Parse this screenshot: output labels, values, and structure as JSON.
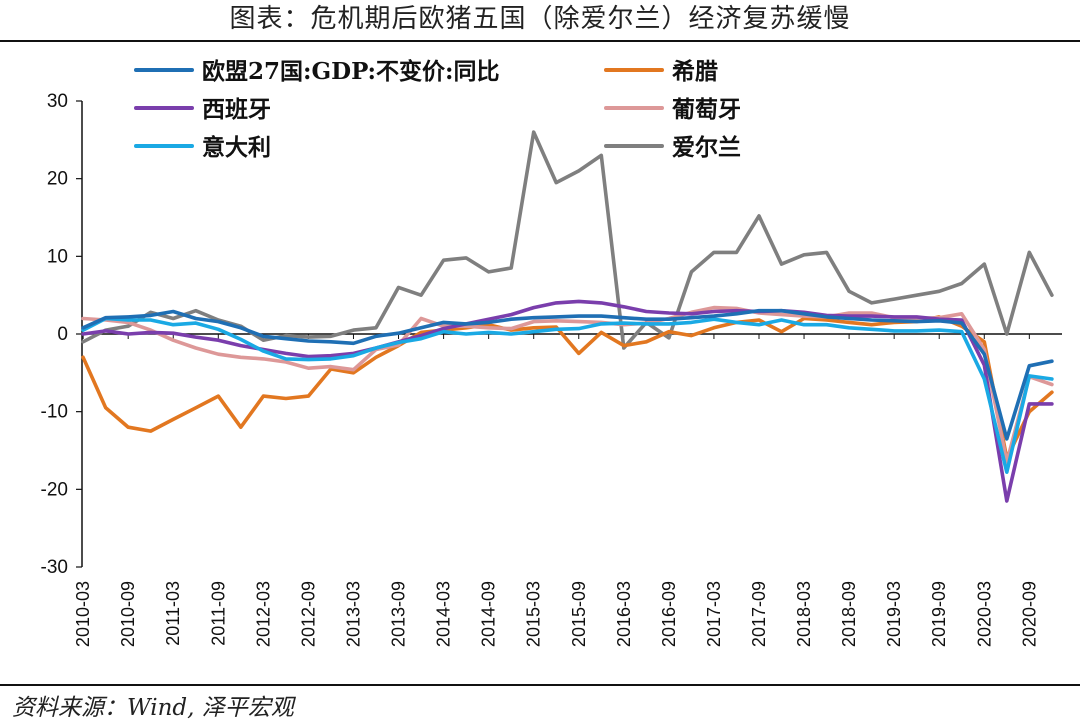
{
  "header": {
    "title": "图表：危机期后欧猪五国（除爱尔兰）经济复苏缓慢"
  },
  "footer": {
    "source": "资料来源：Wind, 泽平宏观"
  },
  "chart_data": {
    "type": "line",
    "title": "图表：危机期后欧猪五国（除爱尔兰）经济复苏缓慢",
    "xlabel": "",
    "ylabel": "",
    "ylim": [
      -30,
      30
    ],
    "yticks": [
      30,
      20,
      10,
      0,
      -10,
      -20,
      -30
    ],
    "grid": false,
    "legend_position": "top",
    "x_tick_labels": [
      "2010-03",
      "2010-09",
      "2011-03",
      "2011-09",
      "2012-03",
      "2012-09",
      "2013-03",
      "2013-09",
      "2014-03",
      "2014-09",
      "2015-03",
      "2015-09",
      "2016-03",
      "2016-09",
      "2017-03",
      "2017-09",
      "2018-03",
      "2018-09",
      "2019-03",
      "2019-09",
      "2020-03",
      "2020-09"
    ],
    "x": [
      "2010-03",
      "2010-06",
      "2010-09",
      "2010-12",
      "2011-03",
      "2011-06",
      "2011-09",
      "2011-12",
      "2012-03",
      "2012-06",
      "2012-09",
      "2012-12",
      "2013-03",
      "2013-06",
      "2013-09",
      "2013-12",
      "2014-03",
      "2014-06",
      "2014-09",
      "2014-12",
      "2015-03",
      "2015-06",
      "2015-09",
      "2015-12",
      "2016-03",
      "2016-06",
      "2016-09",
      "2016-12",
      "2017-03",
      "2017-06",
      "2017-09",
      "2017-12",
      "2018-03",
      "2018-06",
      "2018-09",
      "2018-12",
      "2019-03",
      "2019-06",
      "2019-09",
      "2019-12",
      "2020-03",
      "2020-06",
      "2020-09",
      "2020-12"
    ],
    "series": [
      {
        "name": "欧盟27国:GDP:不变价:同比",
        "color": "#1f6fb4",
        "values": [
          0.8,
          2.1,
          2.2,
          2.4,
          2.9,
          2.0,
          1.6,
          0.8,
          -0.3,
          -0.6,
          -0.9,
          -1.0,
          -1.2,
          -0.3,
          0.1,
          0.8,
          1.5,
          1.3,
          1.5,
          1.9,
          2.1,
          2.2,
          2.3,
          2.3,
          2.1,
          1.9,
          1.9,
          2.1,
          2.3,
          2.6,
          3.0,
          3.0,
          2.6,
          2.2,
          2.0,
          1.8,
          1.7,
          1.6,
          1.7,
          1.4,
          -2.6,
          -13.5,
          -4.1,
          -3.5
        ]
      },
      {
        "name": "希腊",
        "color": "#e27720",
        "values": [
          -3.0,
          -9.5,
          -12.0,
          -12.5,
          -11.0,
          -9.5,
          -8.0,
          -12.0,
          -8.0,
          -8.3,
          -8.0,
          -4.5,
          -5.0,
          -3.0,
          -1.5,
          0.2,
          0.5,
          0.8,
          1.2,
          0.5,
          0.8,
          0.9,
          -2.5,
          0.2,
          -1.5,
          -1.0,
          0.3,
          -0.2,
          0.8,
          1.5,
          1.8,
          0.3,
          2.0,
          1.8,
          1.5,
          1.2,
          1.5,
          1.6,
          2.2,
          1.0,
          -1.0,
          -16.0,
          -10.0,
          -7.5
        ]
      },
      {
        "name": "西班牙",
        "color": "#7a3eac",
        "values": [
          0.0,
          0.4,
          0.0,
          0.2,
          0.1,
          -0.4,
          -0.8,
          -1.5,
          -2.0,
          -2.5,
          -2.9,
          -2.8,
          -2.5,
          -1.8,
          -1.0,
          -0.2,
          0.7,
          1.3,
          1.9,
          2.5,
          3.4,
          4.0,
          4.2,
          4.0,
          3.5,
          2.9,
          2.7,
          2.6,
          2.9,
          3.0,
          2.9,
          3.0,
          2.8,
          2.4,
          2.3,
          2.3,
          2.2,
          2.2,
          1.9,
          1.8,
          -4.0,
          -21.5,
          -9.0,
          -9.0
        ]
      },
      {
        "name": "葡萄牙",
        "color": "#dd9898",
        "values": [
          2.0,
          1.8,
          1.5,
          0.5,
          -0.8,
          -1.8,
          -2.6,
          -3.0,
          -3.2,
          -3.6,
          -4.4,
          -4.2,
          -4.6,
          -2.0,
          -1.4,
          2.0,
          1.0,
          1.0,
          0.8,
          0.7,
          1.6,
          1.7,
          1.6,
          1.5,
          1.2,
          1.4,
          2.0,
          2.8,
          3.4,
          3.3,
          2.7,
          2.5,
          2.3,
          2.2,
          2.7,
          2.7,
          2.1,
          2.0,
          2.1,
          2.6,
          -2.0,
          -16.5,
          -5.5,
          -6.5
        ]
      },
      {
        "name": "意大利",
        "color": "#1aa9e4",
        "values": [
          0.5,
          2.0,
          1.8,
          1.8,
          1.2,
          1.4,
          0.6,
          -0.7,
          -2.2,
          -3.2,
          -3.3,
          -3.2,
          -2.8,
          -1.8,
          -1.1,
          -0.6,
          0.3,
          0.0,
          0.2,
          0.0,
          0.3,
          0.6,
          0.7,
          1.3,
          1.4,
          1.3,
          1.3,
          1.5,
          1.9,
          1.5,
          1.2,
          1.8,
          1.2,
          1.2,
          0.8,
          0.6,
          0.4,
          0.4,
          0.5,
          0.3,
          -5.8,
          -17.8,
          -5.4,
          -5.8
        ]
      },
      {
        "name": "爱尔兰",
        "color": "#7f7f7f",
        "values": [
          -1.0,
          0.5,
          1.0,
          2.8,
          2.0,
          3.0,
          1.8,
          1.0,
          -0.8,
          -0.2,
          -0.4,
          -0.3,
          0.5,
          0.8,
          6.0,
          5.0,
          9.5,
          9.8,
          8.0,
          8.5,
          26.0,
          19.5,
          21.0,
          23.0,
          -1.8,
          1.5,
          -0.5,
          8.0,
          10.5,
          10.5,
          15.2,
          9.0,
          10.2,
          10.5,
          5.5,
          4.0,
          4.5,
          5.0,
          5.5,
          6.5,
          9.0,
          0.0,
          10.5,
          5.0
        ]
      }
    ]
  }
}
